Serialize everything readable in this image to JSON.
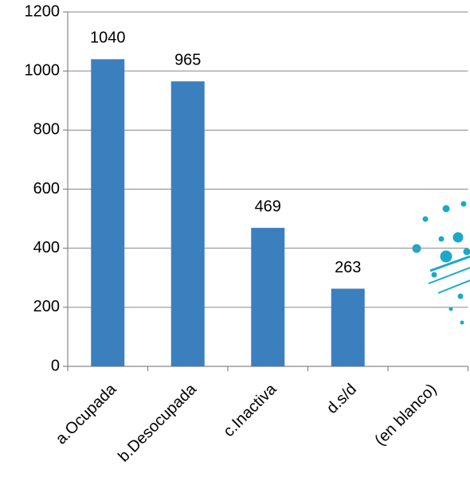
{
  "chart_data": {
    "type": "bar",
    "categories": [
      "a.Ocupada",
      "b.Desocupada",
      "c.Inactiva",
      "d.s/d",
      "(en blanco)"
    ],
    "values": [
      1040,
      965,
      469,
      263,
      null
    ],
    "color": "#3c7fbf",
    "ylim": [
      0,
      1200
    ],
    "yticks": [
      0,
      200,
      400,
      600,
      800,
      1000,
      1200
    ],
    "grid": true
  }
}
